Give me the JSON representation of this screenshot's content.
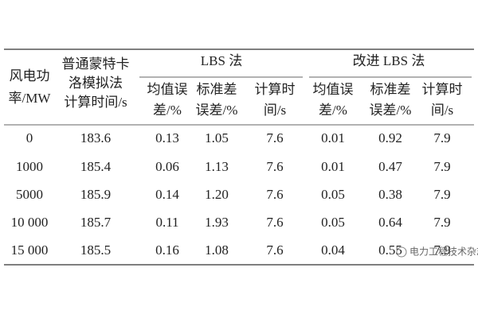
{
  "table": {
    "header": {
      "first": [
        "风电功",
        "率/MW"
      ],
      "second": [
        "普通蒙特卡",
        "洛模拟法",
        "计算时间/s"
      ],
      "groups": [
        "LBS 法",
        "改进 LBS 法"
      ],
      "sub": [
        [
          "均值误",
          "差/%"
        ],
        [
          "标准差",
          "误差/%"
        ],
        [
          "计算时",
          "间/s"
        ],
        [
          "均值误",
          "差/%"
        ],
        [
          "标准差",
          "误差/%"
        ],
        [
          "计算时",
          "间/s"
        ]
      ]
    },
    "rows": [
      [
        "0",
        "183.6",
        "0.13",
        "1.05",
        "7.6",
        "0.01",
        "0.92",
        "7.9"
      ],
      [
        "1000",
        "185.4",
        "0.06",
        "1.13",
        "7.6",
        "0.01",
        "0.47",
        "7.9"
      ],
      [
        "5000",
        "185.9",
        "0.14",
        "1.20",
        "7.6",
        "0.05",
        "0.38",
        "7.9"
      ],
      [
        "10 000",
        "185.7",
        "0.11",
        "1.93",
        "7.6",
        "0.05",
        "0.64",
        "7.9"
      ],
      [
        "15 000",
        "185.5",
        "0.16",
        "1.08",
        "7.6",
        "0.04",
        "0.55",
        "7.9"
      ]
    ]
  },
  "watermark": "电力工程技术杂志"
}
